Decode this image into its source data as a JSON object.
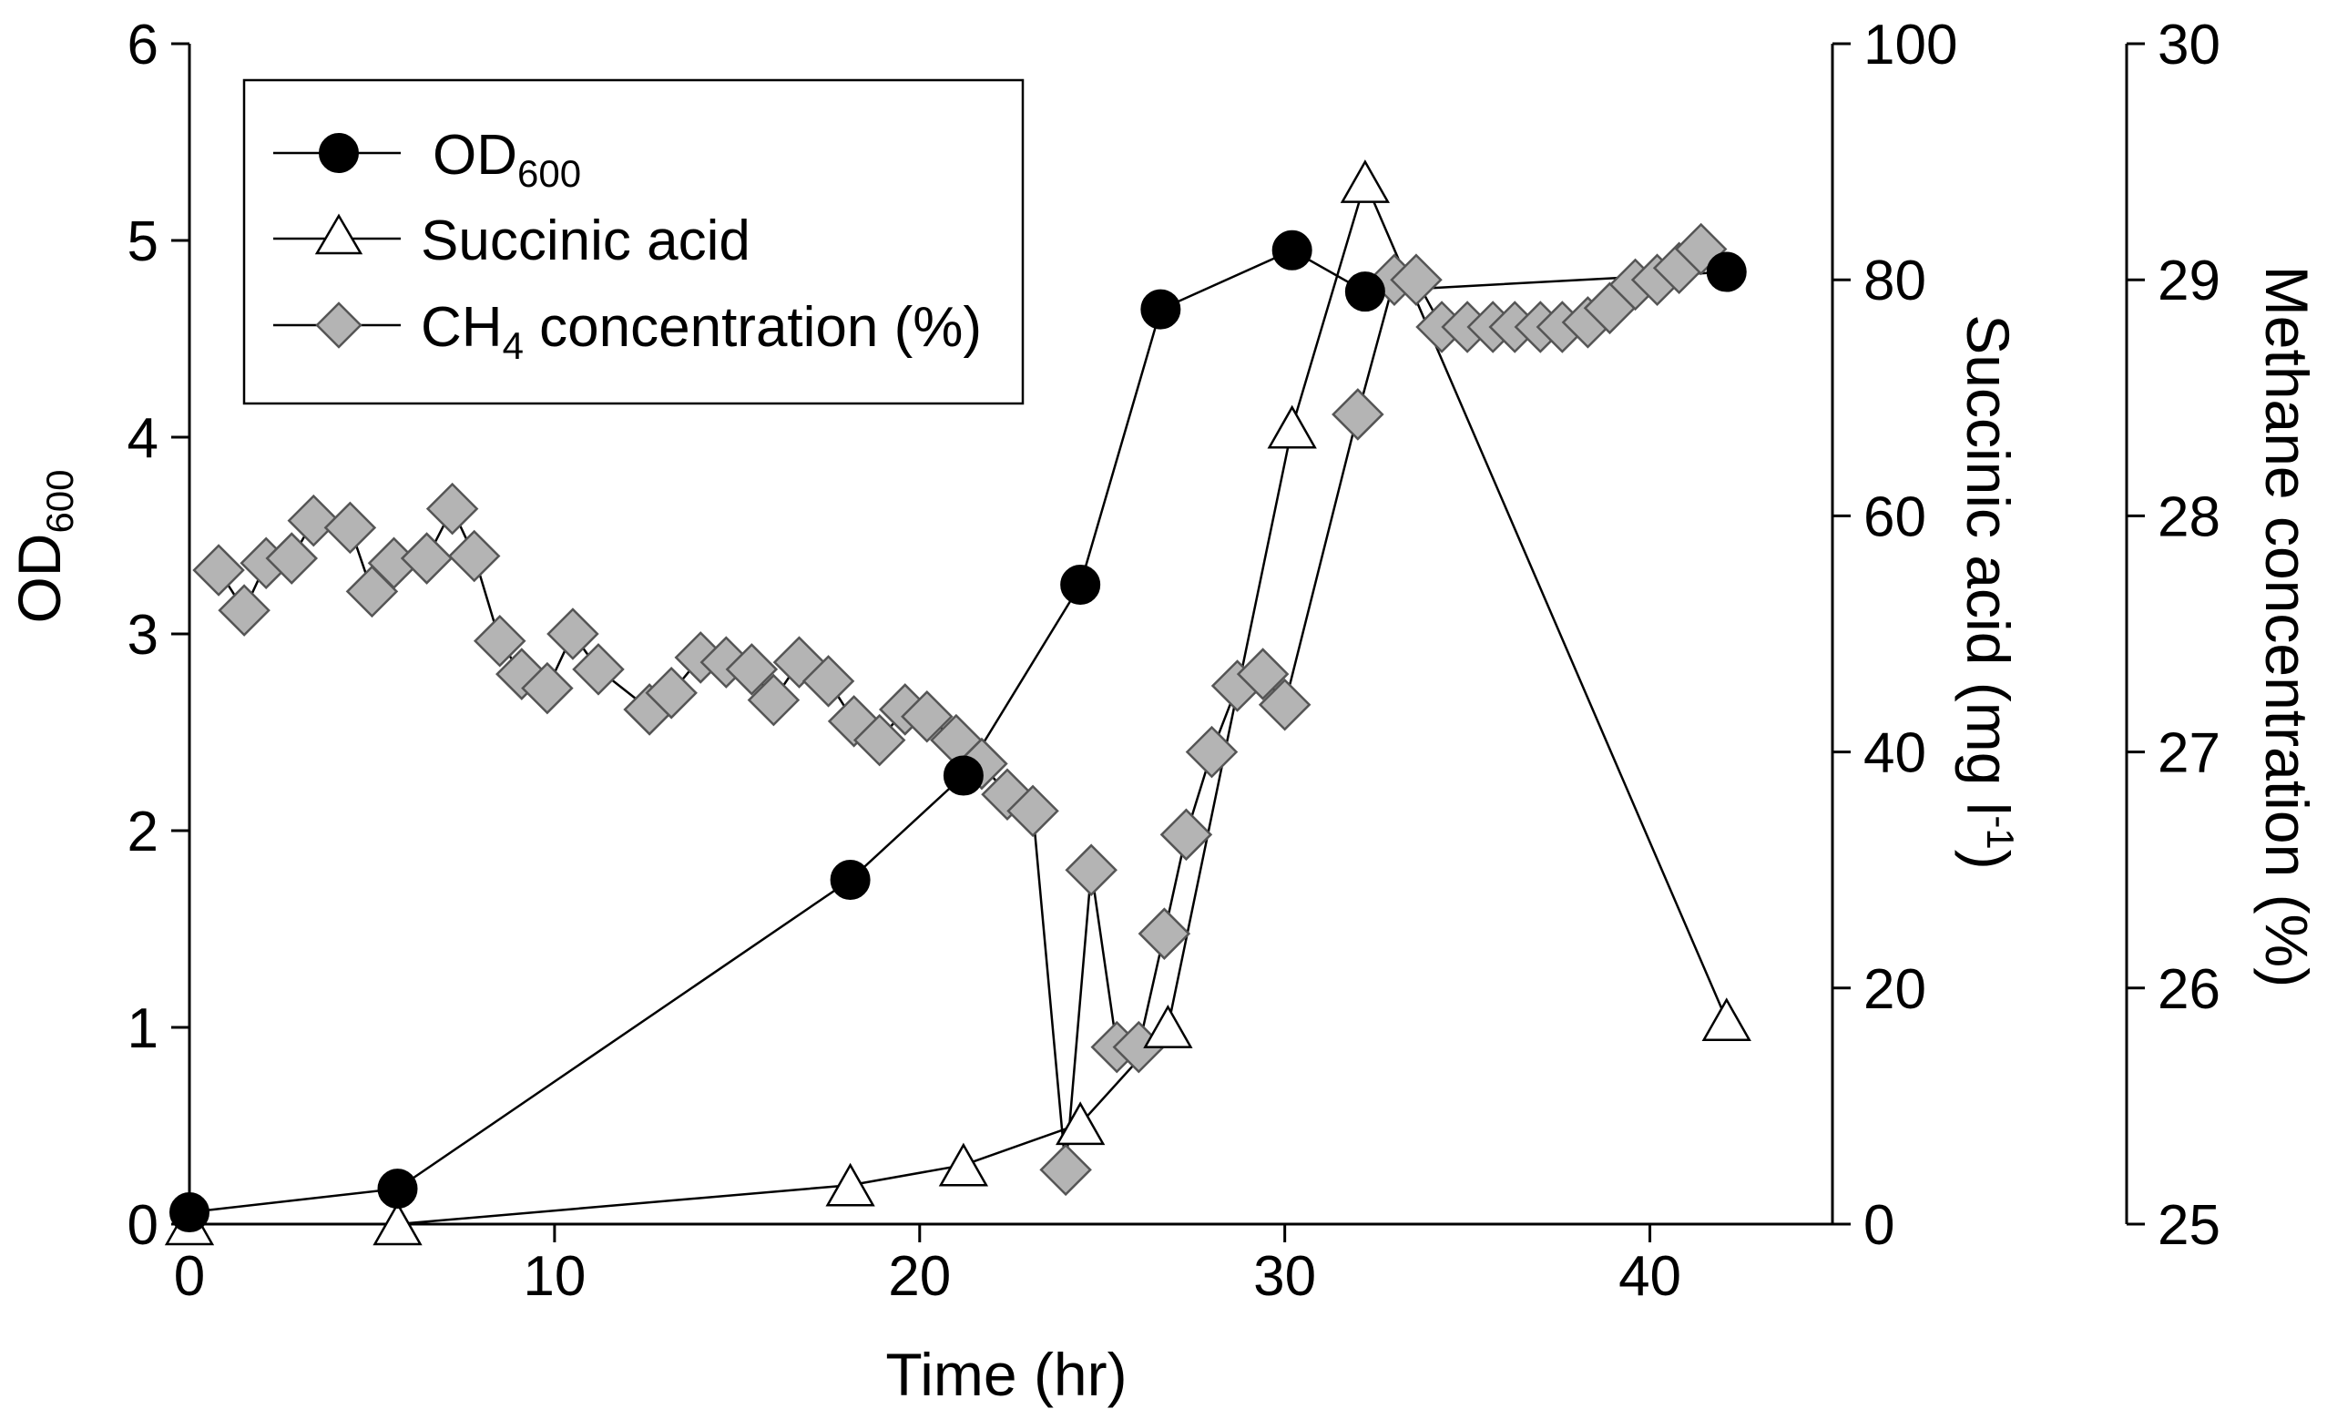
{
  "chart_data": {
    "type": "line",
    "xlabel": "Time (hr)",
    "xlim": [
      0,
      45
    ],
    "xticks": [
      0,
      10,
      20,
      30,
      40
    ],
    "axes": {
      "left": {
        "label_main": "OD",
        "label_sub": "600",
        "lim": [
          0,
          6
        ],
        "ticks": [
          0,
          1,
          2,
          3,
          4,
          5,
          6
        ]
      },
      "right1": {
        "label": "Succinic acid (mg l-1)",
        "label_main": "Succinic acid (mg l",
        "label_sup": "-1",
        "label_close": ")",
        "lim": [
          0,
          100
        ],
        "ticks": [
          0,
          20,
          40,
          60,
          80,
          100
        ]
      },
      "right2": {
        "label": "Methane concentration (%)",
        "lim": [
          25,
          30
        ],
        "ticks": [
          25,
          26,
          27,
          28,
          29,
          30
        ]
      }
    },
    "legend": {
      "position": "top-left",
      "entries": [
        {
          "series": "od600",
          "label_main": "OD",
          "label_sub": "600",
          "label_rest": ""
        },
        {
          "series": "succinic",
          "label_main": "Succinic acid",
          "label_sub": "",
          "label_rest": ""
        },
        {
          "series": "ch4",
          "label_main": "CH",
          "label_sub": "4",
          "label_rest": " concentration (%)"
        }
      ]
    },
    "series": [
      {
        "id": "od600",
        "name": "OD600",
        "axis": "left",
        "marker": "circle",
        "fill": "#000000",
        "x": [
          0,
          5.7,
          18.1,
          21.2,
          24.4,
          26.6,
          30.2,
          32.2,
          42.1
        ],
        "y": [
          0.06,
          0.18,
          1.75,
          2.28,
          3.25,
          4.65,
          4.95,
          4.74,
          4.84
        ]
      },
      {
        "id": "succinic",
        "name": "Succinic acid",
        "axis": "right1",
        "marker": "triangle",
        "fill": "#ffffff",
        "x": [
          0,
          5.7,
          18.1,
          21.2,
          24.4,
          26.8,
          30.2,
          32.2,
          42.1
        ],
        "y": [
          0,
          0,
          3.3,
          5.0,
          8.5,
          16.7,
          67.5,
          88.3,
          17.3
        ]
      },
      {
        "id": "ch4",
        "name": "CH4 concentration (%)",
        "axis": "right2",
        "marker": "diamond",
        "fill": "#b4b4b4",
        "x": [
          0.8,
          1.5,
          2.1,
          2.8,
          3.4,
          4.4,
          5.0,
          5.6,
          6.5,
          7.2,
          7.8,
          8.5,
          9.1,
          9.8,
          10.5,
          11.2,
          12.6,
          13.2,
          14.0,
          14.7,
          15.4,
          16.0,
          16.7,
          17.5,
          18.2,
          18.9,
          19.6,
          20.2,
          21.0,
          21.7,
          22.4,
          23.1,
          24.0,
          24.7,
          25.4,
          26.0,
          26.7,
          27.3,
          28.0,
          28.7,
          29.4,
          30.0,
          32.0,
          33.0,
          33.6,
          34.3,
          35.0,
          35.7,
          36.3,
          37.0,
          37.6,
          38.3,
          38.9,
          39.6,
          40.2,
          40.8,
          41.4
        ],
        "y": [
          27.77,
          27.6,
          27.8,
          27.82,
          27.98,
          27.95,
          27.68,
          27.8,
          27.82,
          28.03,
          27.83,
          27.47,
          27.33,
          27.27,
          27.5,
          27.35,
          27.18,
          27.25,
          27.4,
          27.38,
          27.35,
          27.22,
          27.38,
          27.3,
          27.13,
          27.05,
          27.18,
          27.15,
          27.05,
          26.95,
          26.82,
          26.75,
          25.23,
          26.5,
          25.75,
          25.75,
          26.23,
          26.65,
          27.0,
          27.28,
          27.33,
          27.2,
          28.43,
          29.0,
          29.0,
          28.8,
          28.8,
          28.8,
          28.8,
          28.8,
          28.8,
          28.82,
          28.88,
          28.98,
          29.0,
          29.05,
          29.13
        ]
      }
    ]
  }
}
